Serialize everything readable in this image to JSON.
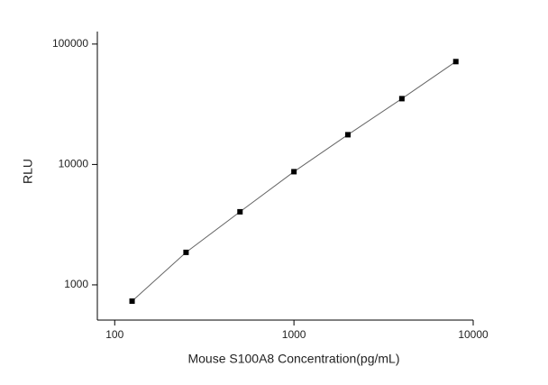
{
  "chart_data": {
    "type": "line",
    "x_label": "Mouse S100A8 Concentration(pg/mL)",
    "y_label": "RLU",
    "x": [
      125,
      250,
      500,
      1000,
      2000,
      4000,
      8000
    ],
    "values": [
      733,
      1862,
      4045,
      8710,
      17660,
      35200,
      71500
    ],
    "xscale": "log",
    "yscale": "log",
    "xlim": [
      80,
      10000
    ],
    "ylim": [
      510,
      127000
    ],
    "xticks": [
      100,
      1000,
      10000
    ],
    "yticks": [
      1000,
      10000,
      100000
    ],
    "line_color": "#666666",
    "marker_color": "#000000",
    "marker": "square"
  }
}
